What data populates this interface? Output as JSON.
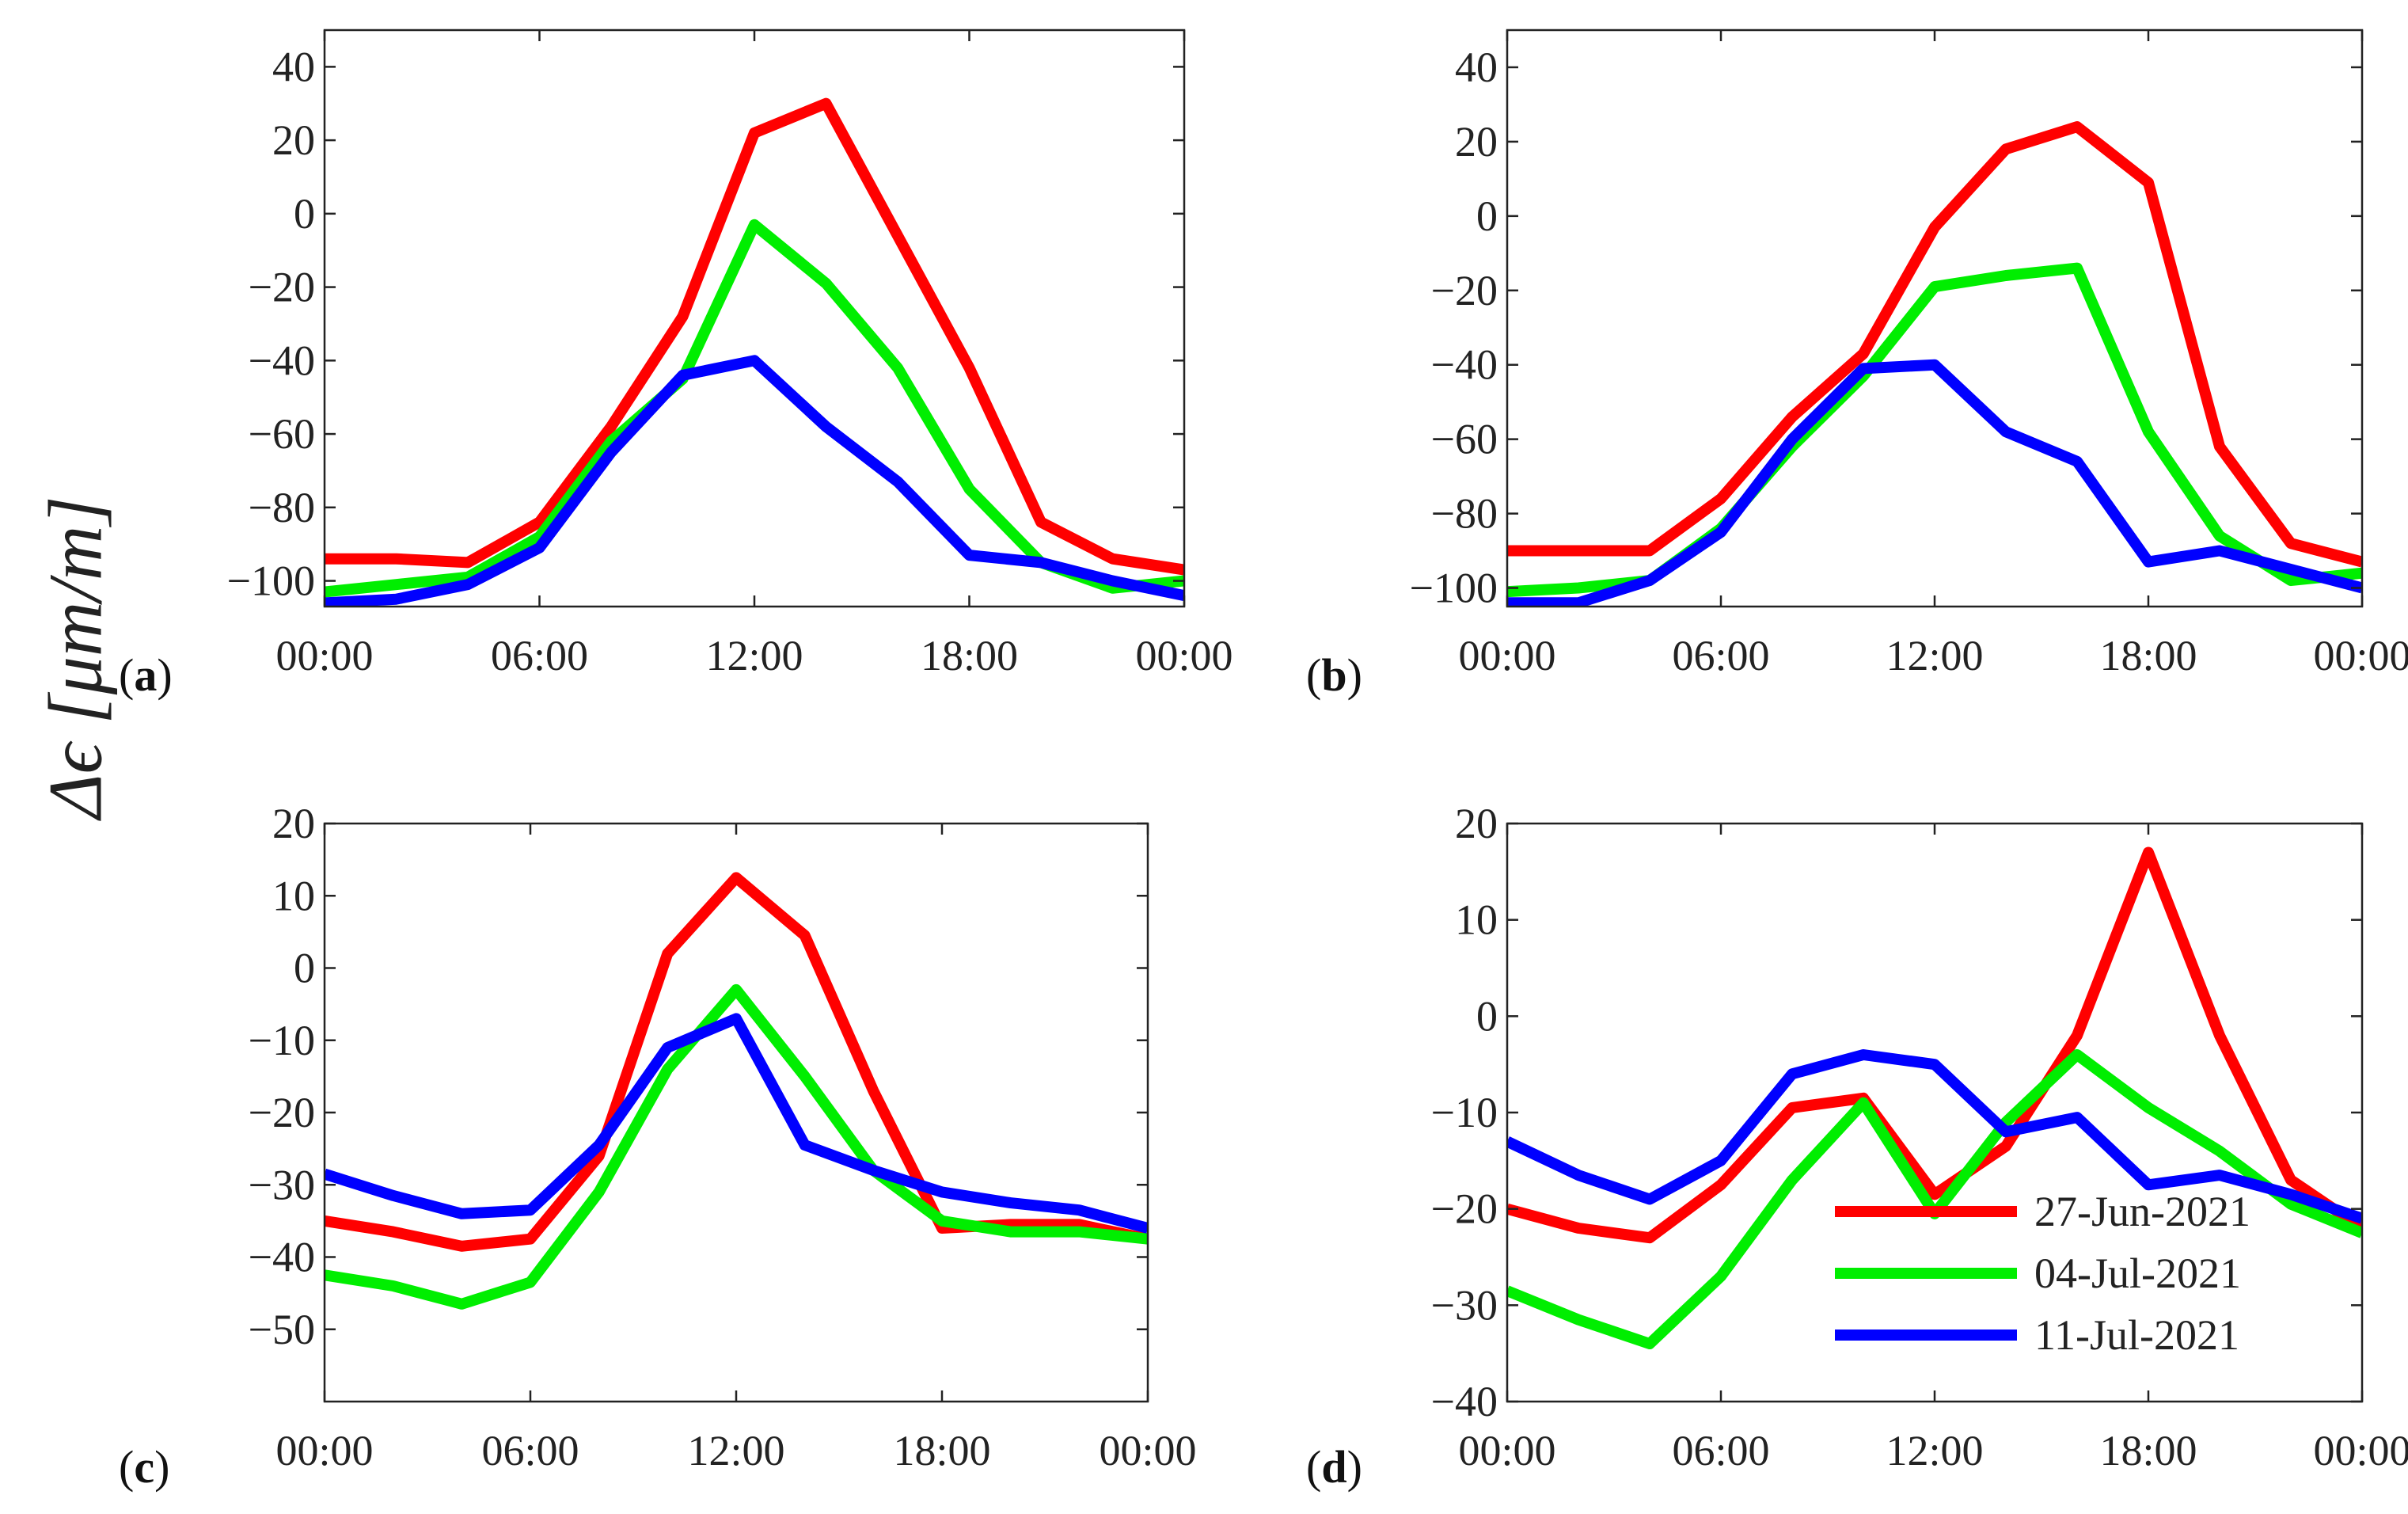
{
  "figure": {
    "ylabel": "Δϵ [μm/m]"
  },
  "legend": {
    "entries": [
      {
        "label": "27-Jun-2021",
        "color": "#ff0000"
      },
      {
        "label": "04-Jul-2021",
        "color": "#00ee00"
      },
      {
        "label": "11-Jul-2021",
        "color": "#0000ff"
      }
    ]
  },
  "chart_data": [
    {
      "type": "line",
      "panel_label": "(a)",
      "x": [
        0,
        2,
        4,
        6,
        8,
        10,
        12,
        14,
        16,
        18,
        20,
        22,
        24
      ],
      "xticks": [
        0,
        6,
        12,
        18,
        24
      ],
      "xtick_labels": [
        "00:00",
        "06:00",
        "12:00",
        "18:00",
        "00:00"
      ],
      "xlim": [
        0,
        24
      ],
      "ylim": [
        -107,
        50
      ],
      "yticks": [
        -100,
        -80,
        -60,
        -40,
        -20,
        0,
        20,
        40
      ],
      "ytick_labels": [
        "−100",
        "−80",
        "−60",
        "−40",
        "−20",
        "0",
        "20",
        "40"
      ],
      "series": [
        {
          "name": "27-Jun-2021",
          "color": "#ff0000",
          "values": [
            -94,
            -94,
            -95,
            -84,
            -58,
            -28,
            22,
            30,
            -6,
            -42,
            -84,
            -94,
            -97
          ]
        },
        {
          "name": "04-Jul-2021",
          "color": "#00ee00",
          "values": [
            -103,
            -101,
            -99,
            -88,
            -62,
            -45,
            -3,
            -19,
            -42,
            -75,
            -95,
            -102,
            -100
          ]
        },
        {
          "name": "11-Jul-2021",
          "color": "#0000ff",
          "values": [
            -106,
            -105,
            -101,
            -91,
            -65,
            -44,
            -40,
            -58,
            -73,
            -93,
            -95,
            -100,
            -104
          ]
        }
      ]
    },
    {
      "type": "line",
      "panel_label": "(b)",
      "x": [
        0,
        2,
        4,
        6,
        8,
        10,
        12,
        14,
        16,
        18,
        20,
        22,
        24
      ],
      "xticks": [
        0,
        6,
        12,
        18,
        24
      ],
      "xtick_labels": [
        "00:00",
        "06:00",
        "12:00",
        "18:00",
        "00:00"
      ],
      "xlim": [
        0,
        24
      ],
      "ylim": [
        -105,
        50
      ],
      "yticks": [
        -100,
        -80,
        -60,
        -40,
        -20,
        0,
        20,
        40
      ],
      "ytick_labels": [
        "−100",
        "−80",
        "−60",
        "−40",
        "−20",
        "0",
        "20",
        "40"
      ],
      "series": [
        {
          "name": "27-Jun-2021",
          "color": "#ff0000",
          "values": [
            -90,
            -90,
            -90,
            -76,
            -54,
            -37,
            -3,
            18,
            24,
            9,
            -62,
            -88,
            -93
          ]
        },
        {
          "name": "04-Jul-2021",
          "color": "#00ee00",
          "values": [
            -101,
            -100,
            -98,
            -84,
            -62,
            -43,
            -19,
            -16,
            -14,
            -58,
            -86,
            -98,
            -96
          ]
        },
        {
          "name": "11-Jul-2021",
          "color": "#0000ff",
          "values": [
            -104,
            -104,
            -98,
            -85,
            -60,
            -41,
            -40,
            -58,
            -66,
            -93,
            -90,
            -95,
            -100
          ]
        }
      ]
    },
    {
      "type": "line",
      "panel_label": "(c)",
      "x": [
        0,
        2,
        4,
        6,
        8,
        10,
        12,
        14,
        16,
        18,
        20,
        22,
        24
      ],
      "xticks": [
        0,
        6,
        12,
        18,
        24
      ],
      "xtick_labels": [
        "00:00",
        "06:00",
        "12:00",
        "18:00",
        "00:00"
      ],
      "xlim": [
        0,
        24
      ],
      "ylim": [
        -60,
        20
      ],
      "yticks": [
        -50,
        -40,
        -30,
        -20,
        -10,
        0,
        10,
        20
      ],
      "ytick_labels": [
        "−50",
        "−40",
        "−30",
        "−20",
        "−10",
        "0",
        "10",
        "20"
      ],
      "series": [
        {
          "name": "27-Jun-2021",
          "color": "#ff0000",
          "values": [
            -35,
            -36.5,
            -38.5,
            -37.5,
            -26,
            2,
            12.5,
            4.5,
            -17,
            -36,
            -35.5,
            -35.5,
            -37.5
          ]
        },
        {
          "name": "04-Jul-2021",
          "color": "#00ee00",
          "values": [
            -42.5,
            -44,
            -46.5,
            -43.5,
            -31,
            -14,
            -3,
            -15,
            -28,
            -35,
            -36.5,
            -36.5,
            -37.5
          ]
        },
        {
          "name": "11-Jul-2021",
          "color": "#0000ff",
          "values": [
            -28.5,
            -31.5,
            -34,
            -33.5,
            -24.5,
            -11,
            -7,
            -24.5,
            -28,
            -31,
            -32.5,
            -33.5,
            -36
          ]
        }
      ]
    },
    {
      "type": "line",
      "panel_label": "(d)",
      "x": [
        0,
        2,
        4,
        6,
        8,
        10,
        12,
        14,
        16,
        18,
        20,
        22,
        24
      ],
      "xticks": [
        0,
        6,
        12,
        18,
        24
      ],
      "xtick_labels": [
        "00:00",
        "06:00",
        "12:00",
        "18:00",
        "00:00"
      ],
      "xlim": [
        0,
        24
      ],
      "ylim": [
        -40,
        20
      ],
      "yticks": [
        -40,
        -30,
        -20,
        -10,
        0,
        10,
        20
      ],
      "ytick_labels": [
        "−40",
        "−30",
        "−20",
        "−10",
        "0",
        "10",
        "20"
      ],
      "legend": "lower-right",
      "series": [
        {
          "name": "27-Jun-2021",
          "color": "#ff0000",
          "values": [
            -20,
            -22,
            -23,
            -17.5,
            -9.5,
            -8.5,
            -18.5,
            -13.5,
            -2,
            17,
            -2,
            -17,
            -22
          ]
        },
        {
          "name": "04-Jul-2021",
          "color": "#00ee00",
          "values": [
            -28.5,
            -31.5,
            -34,
            -27,
            -17,
            -9,
            -20.5,
            -11,
            -4,
            -9.5,
            -14,
            -19.5,
            -22.5
          ]
        },
        {
          "name": "11-Jul-2021",
          "color": "#0000ff",
          "values": [
            -13,
            -16.5,
            -19,
            -15,
            -6,
            -4,
            -5,
            -12,
            -10.5,
            -17.5,
            -16.5,
            -18.5,
            -21
          ]
        }
      ]
    }
  ]
}
